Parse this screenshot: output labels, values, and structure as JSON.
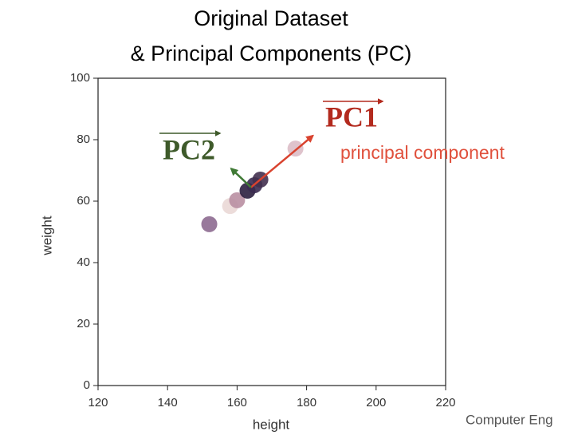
{
  "chart_data": {
    "type": "scatter",
    "title_lines": [
      "Original Dataset",
      "& Principal Components (PC)"
    ],
    "x_label": "height",
    "y_label": "weight",
    "xlim": [
      120,
      220
    ],
    "xticks": [
      120,
      140,
      160,
      180,
      200,
      220
    ],
    "ylim": [
      0,
      100
    ],
    "yticks": [
      0,
      20,
      40,
      60,
      80,
      100
    ],
    "x": [
      152,
      158,
      160,
      163,
      165,
      166.7,
      176.8
    ],
    "series": [
      {
        "values": [
          52.5,
          58.4,
          60.3,
          63.4,
          65.2,
          67,
          77.1
        ],
        "colors": [
          "#8d6a90",
          "#ead8d6",
          "#b98fa2",
          "#2b1f3f",
          "#3a2a50",
          "#43304f",
          "#dbbcc6"
        ]
      }
    ],
    "arrows": [
      {
        "start": [
          164,
          64.5
        ],
        "end": [
          181.8,
          81.3
        ],
        "color": "#d9432f"
      },
      {
        "start": [
          164,
          64.5
        ],
        "end": [
          158.3,
          70.6
        ],
        "color": "#3f7a35"
      }
    ],
    "annotations": [
      {
        "text": "PC1",
        "color": "#b32a1e"
      },
      {
        "text": "PC2",
        "color": "#3e5a2a"
      },
      {
        "text": "principal component",
        "color": "#e0503c"
      }
    ],
    "footer": "Computer Eng"
  }
}
